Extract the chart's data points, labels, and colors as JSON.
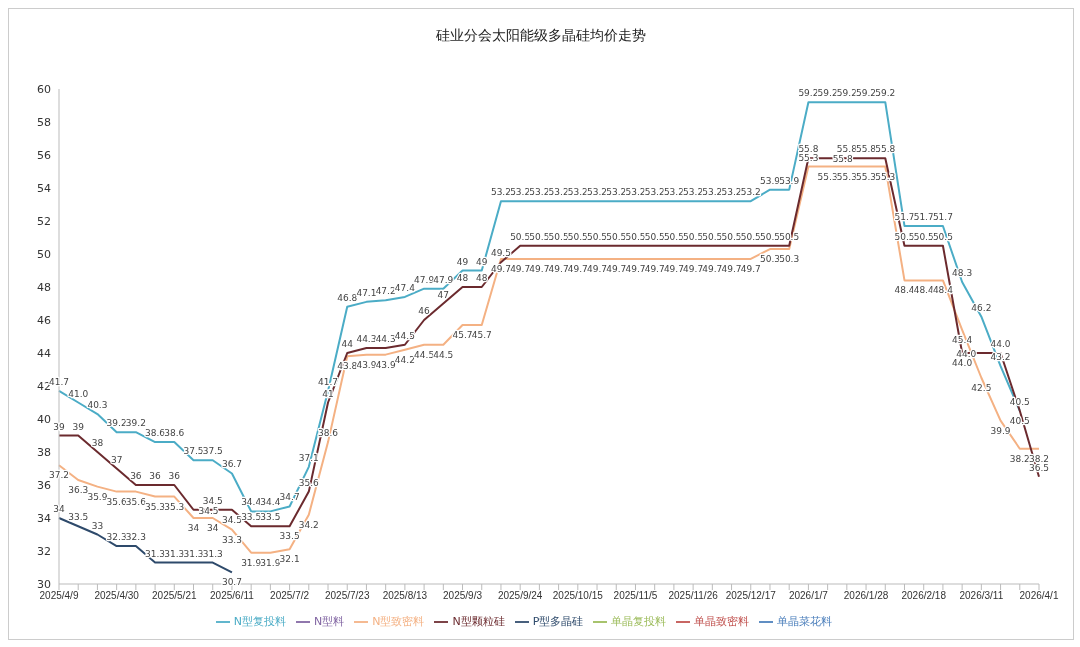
{
  "chart_data": {
    "type": "line",
    "title": "硅业分会太阳能级多晶硅均价走势",
    "categories": [
      "2025/4/9",
      null,
      null,
      "2025/4/30",
      null,
      null,
      "2025/5/21",
      null,
      null,
      "2025/6/11",
      null,
      null,
      "2025/7/2",
      null,
      null,
      "2025/7/23",
      null,
      null,
      "2025/8/13",
      null,
      null,
      "2025/9/3",
      null,
      null,
      "2025/9/24",
      null,
      null,
      "2025/10/15",
      null,
      null,
      "2025/11/5",
      null,
      null,
      "2025/11/26",
      null,
      null,
      "2025/12/17",
      null,
      null,
      "2026/1/7",
      null,
      null,
      "2026/1/28",
      null,
      null,
      "2026/2/18",
      null,
      null,
      "2026/3/11",
      null,
      null,
      "2026/4/1"
    ],
    "series": [
      {
        "name": "单晶菜花料",
        "color": "#4a7ebb",
        "values": [
          null,
          null,
          null,
          null,
          null,
          null,
          null,
          null,
          null,
          null,
          null,
          null,
          null,
          null,
          null,
          null,
          null,
          null,
          null,
          null,
          null,
          null,
          null,
          null,
          null,
          null,
          null,
          null,
          null,
          null,
          null,
          null,
          null,
          null,
          null,
          null,
          null,
          null,
          null,
          null,
          null,
          null,
          null,
          null,
          null,
          null,
          null,
          null,
          null,
          null,
          null,
          null
        ]
      },
      {
        "name": "单晶致密料",
        "color": "#c0504d",
        "values": [
          null,
          null,
          null,
          null,
          null,
          null,
          null,
          null,
          null,
          null,
          null,
          null,
          null,
          null,
          null,
          null,
          null,
          null,
          null,
          null,
          null,
          null,
          null,
          null,
          null,
          null,
          null,
          null,
          null,
          null,
          null,
          null,
          null,
          null,
          null,
          null,
          null,
          null,
          null,
          null,
          null,
          null,
          null,
          null,
          null,
          null,
          null,
          null,
          null,
          null,
          null,
          null
        ]
      },
      {
        "name": "单晶复投料",
        "color": "#9bbb59",
        "values": [
          null,
          null,
          null,
          null,
          null,
          null,
          null,
          null,
          null,
          null,
          null,
          null,
          null,
          null,
          null,
          null,
          null,
          null,
          null,
          null,
          null,
          null,
          null,
          null,
          null,
          null,
          null,
          null,
          null,
          null,
          null,
          null,
          null,
          null,
          null,
          null,
          null,
          null,
          null,
          null,
          null,
          null,
          null,
          null,
          null,
          null,
          null,
          null,
          null,
          null,
          null,
          null
        ]
      },
      {
        "name": "N型料",
        "color": "#8064a2",
        "values": [
          null,
          null,
          null,
          null,
          null,
          null,
          null,
          null,
          null,
          null,
          null,
          null,
          null,
          null,
          null,
          null,
          null,
          null,
          null,
          null,
          null,
          null,
          null,
          null,
          null,
          null,
          null,
          null,
          null,
          null,
          null,
          null,
          null,
          null,
          null,
          null,
          null,
          null,
          null,
          null,
          null,
          null,
          null,
          null,
          null,
          null,
          null,
          null,
          null,
          null,
          null,
          null
        ]
      },
      {
        "name": "N型复投料",
        "color": "#4bacc6",
        "values": [
          41.7,
          41.0,
          40.3,
          39.2,
          39.2,
          38.6,
          38.6,
          37.5,
          37.5,
          36.7,
          34.4,
          34.4,
          34.7,
          37.1,
          41.7,
          46.8,
          47.1,
          47.2,
          47.4,
          47.9,
          47.9,
          49,
          49,
          53.2,
          53.2,
          53.2,
          53.2,
          53.2,
          53.2,
          53.2,
          53.2,
          53.2,
          53.2,
          53.2,
          53.2,
          53.2,
          53.2,
          53.9,
          53.9,
          59.2,
          59.2,
          59.2,
          59.2,
          59.2,
          51.7,
          51.7,
          51.7,
          48.3,
          46.2,
          43.2,
          40.5,
          null
        ],
        "value_labels": [
          "41.7",
          "41.0",
          "40.3",
          "39.2",
          "39.2",
          "38.6",
          "38.6",
          "37.5",
          "37.5",
          "36.7",
          "34.4",
          "34.4",
          "34.7",
          "37.1",
          "41.7",
          "46.8",
          "47.1",
          "47.2",
          "47.4",
          "47.9",
          "47.9",
          "49",
          "49",
          "53.2",
          "53.2",
          "53.2",
          "53.2",
          "53.2",
          "53.2",
          "53.2",
          "53.2",
          "53.2",
          "53.2",
          "53.2",
          "53.2",
          "53.2",
          "53.2",
          "53.9",
          "53.9",
          "59.2",
          "59.2",
          "59.2",
          "59.2",
          "59.2",
          "51.7",
          "51.7",
          "51.7",
          "48.3",
          "46.2",
          "43.2",
          "40.5",
          null
        ]
      },
      {
        "name": "N型致密料",
        "color": "#f4b183",
        "values": [
          37.2,
          36.3,
          35.9,
          35.6,
          35.6,
          35.3,
          35.3,
          34,
          34,
          33.3,
          31.9,
          31.9,
          32.1,
          34.2,
          38.6,
          43.8,
          43.9,
          43.9,
          44.2,
          44.5,
          44.5,
          45.7,
          45.7,
          49.7,
          49.7,
          49.7,
          49.7,
          49.7,
          49.7,
          49.7,
          49.7,
          49.7,
          49.7,
          49.7,
          49.7,
          49.7,
          49.7,
          50.3,
          50.3,
          55.3,
          55.3,
          55.3,
          55.3,
          55.3,
          48.4,
          48.4,
          48.4,
          45.4,
          42.5,
          39.9,
          38.2,
          38.2
        ],
        "value_labels": [
          "37.2",
          "36.3",
          "35.9",
          "35.6",
          "35.6",
          "35.3",
          "35.3",
          "34",
          "34",
          "33.3",
          "31.9",
          "31.9",
          "32.1",
          "34.2",
          "38.6",
          "43.8",
          "43.9",
          "43.9",
          "44.2",
          "44.5",
          "44.5",
          "45.7",
          "45.7",
          "49.7",
          "49.7",
          "49.7",
          "49.7",
          "49.7",
          "49.7",
          "49.7",
          "49.7",
          "49.7",
          "49.7",
          "49.7",
          "49.7",
          "49.7",
          "49.7",
          "50.3",
          "50.3",
          "55.3",
          "55.3",
          "55.3",
          "55.3",
          "55.3",
          "48.4",
          "48.4",
          "48.4",
          "45.4",
          "42.5",
          "39.9",
          "38.2",
          "38.2"
        ]
      },
      {
        "name": "P型多晶硅",
        "color": "#2e4a6b",
        "values": [
          34,
          33.5,
          33,
          32.3,
          32.3,
          31.3,
          31.3,
          31.3,
          31.3,
          30.7,
          null,
          null,
          null,
          null,
          null,
          null,
          null,
          null,
          null,
          null,
          null,
          null,
          null,
          null,
          null,
          null,
          null,
          null,
          null,
          null,
          null,
          null,
          null,
          null,
          null,
          null,
          null,
          null,
          null,
          null,
          null,
          null,
          null,
          null,
          null,
          null,
          null,
          null,
          null,
          null,
          null,
          null
        ],
        "value_labels": [
          "34",
          "33.5",
          "33",
          "32.3",
          "32.3",
          "31.3",
          "31.3",
          "31.3",
          "31.3",
          "30.7",
          null,
          null,
          null,
          null,
          null,
          null,
          null,
          null,
          null,
          null,
          null,
          null,
          null,
          null,
          null,
          null,
          null,
          null,
          null,
          null,
          null,
          null,
          null,
          null,
          null,
          null,
          null,
          null,
          null,
          null,
          null,
          null,
          null,
          null,
          null,
          null,
          null,
          null,
          null,
          null,
          null,
          null
        ]
      },
      {
        "name": "N型颗粒硅",
        "color": "#6b2a2e",
        "values": [
          39,
          39,
          38,
          37,
          36,
          36,
          36,
          34.5,
          34.5,
          34.5,
          33.5,
          33.5,
          33.5,
          35.6,
          41,
          44,
          44.3,
          44.3,
          44.5,
          46,
          47,
          48,
          48,
          49.5,
          50.5,
          50.5,
          50.5,
          50.5,
          50.5,
          50.5,
          50.5,
          50.5,
          50.5,
          50.5,
          50.5,
          50.5,
          50.5,
          50.5,
          50.5,
          55.8,
          55.8,
          55.8,
          55.8,
          55.8,
          50.5,
          50.5,
          50.5,
          44.0,
          44.0,
          44.0,
          40.5,
          36.5
        ],
        "value_labels": [
          "39",
          "39",
          "38",
          "37",
          "36",
          "36",
          "36",
          "34.5",
          "34.5",
          "34.5",
          "33.5",
          "33.5",
          "33.5",
          "35.6",
          "41",
          "44",
          "44.3",
          "44.3",
          "44.5",
          "46",
          "47",
          "48",
          "48",
          "49.5",
          "50.5",
          "50.5",
          "50.5",
          "50.5",
          "50.5",
          "50.5",
          "50.5",
          "50.5",
          "50.5",
          "50.5",
          "50.5",
          "50.5",
          "50.5",
          "50.5",
          "50.5",
          "55.8",
          "55.8",
          "55.8",
          "55.8",
          "55.8",
          "50.5",
          "50.5",
          "50.5",
          "44.0",
          "44.0",
          "44.0",
          "40.5",
          "36.5"
        ]
      }
    ],
    "ylim": [
      30,
      60
    ],
    "yticks": [
      30,
      32,
      34,
      36,
      38,
      40,
      42,
      44,
      46,
      48,
      50,
      52,
      54,
      56,
      58,
      60
    ],
    "grid": false,
    "legend": "bottom",
    "marker": "none",
    "line_style": "solid"
  }
}
